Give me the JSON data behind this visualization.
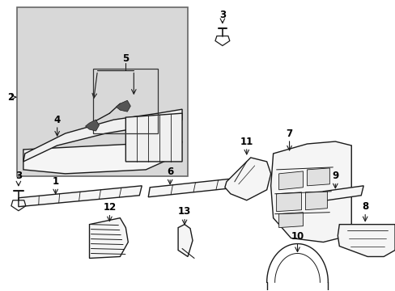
{
  "bg_color": "#ffffff",
  "box_bg": "#d8d8d8",
  "lc": "#1a1a1a",
  "figsize": [
    4.89,
    3.6
  ],
  "dpi": 100
}
